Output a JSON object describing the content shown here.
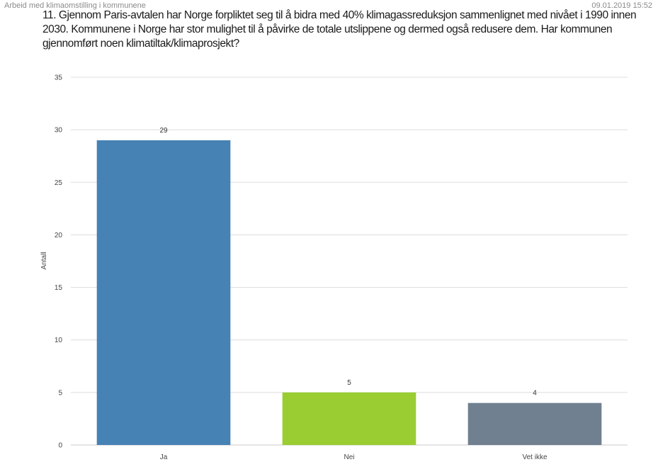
{
  "header": {
    "survey_title": "Arbeid med klimaomstilling i kommunene",
    "timestamp": "09.01.2019 15:52"
  },
  "question": "11. Gjennom Paris-avtalen har Norge forpliktet seg til å bidra med 40% klimagassreduksjon sammenlignet med nivået i 1990 innen 2030. Kommunene i Norge har stor mulighet til å påvirke de totale utslippene og dermed også redusere dem. Har kommunen gjennomført noen klimatiltak/klimaprosjekt?",
  "chart_data": {
    "type": "bar",
    "categories": [
      "Ja",
      "Nei",
      "Vet ikke"
    ],
    "values": [
      29,
      5,
      4
    ],
    "colors": [
      "#4682b4",
      "#9acd32",
      "#708090"
    ],
    "title": "",
    "xlabel": "",
    "ylabel": "Antall",
    "ylim": [
      0,
      35
    ],
    "yticks": [
      0,
      5,
      10,
      15,
      20,
      25,
      30,
      35
    ],
    "grid": true,
    "data_labels": true
  }
}
